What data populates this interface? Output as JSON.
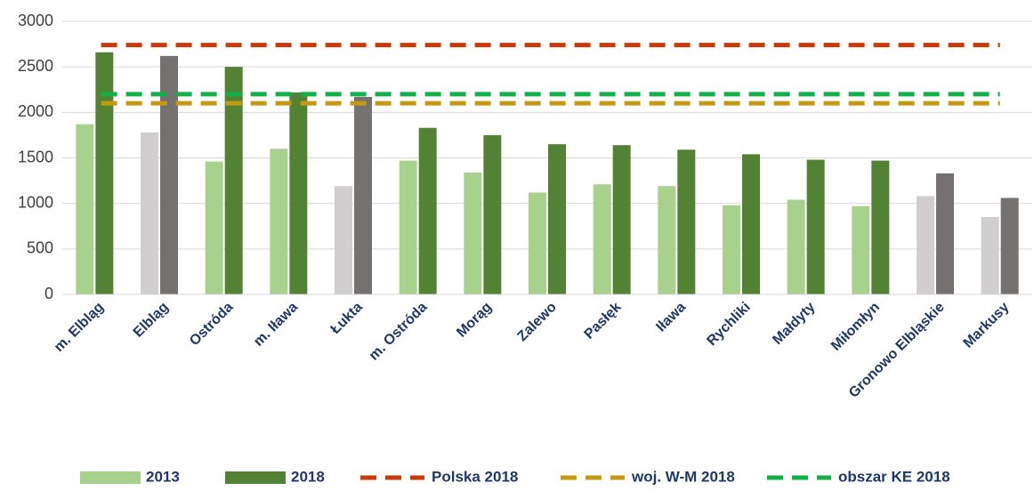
{
  "chart_data": {
    "type": "bar",
    "categories": [
      "m. Elbląg",
      "Elbląg",
      "Ostróda",
      "m. Iława",
      "Łukta",
      "m. Ostróda",
      "Morąg",
      "Zalewo",
      "Pasłęk",
      "Iława",
      "Rychliki",
      "Małdyty",
      "Miłomłyn",
      "Gronowo Elbląskie",
      "Markusy"
    ],
    "series": [
      {
        "name": "2013",
        "color": "#a9d18e",
        "colors": [
          "#a9d18e",
          "#d0cece",
          "#a9d18e",
          "#a9d18e",
          "#d0cece",
          "#a9d18e",
          "#a9d18e",
          "#a9d18e",
          "#a9d18e",
          "#a9d18e",
          "#a9d18e",
          "#a9d18e",
          "#a9d18e",
          "#d0cece",
          "#d0cece"
        ],
        "values": [
          1870,
          1780,
          1460,
          1600,
          1190,
          1470,
          1340,
          1120,
          1210,
          1190,
          980,
          1040,
          970,
          1080,
          850
        ]
      },
      {
        "name": "2018",
        "color": "#548235",
        "colors": [
          "#548235",
          "#767171",
          "#548235",
          "#548235",
          "#767171",
          "#548235",
          "#548235",
          "#548235",
          "#548235",
          "#548235",
          "#548235",
          "#548235",
          "#548235",
          "#767171",
          "#767171"
        ],
        "values": [
          2660,
          2620,
          2500,
          2220,
          2170,
          1830,
          1750,
          1650,
          1640,
          1590,
          1540,
          1480,
          1470,
          1330,
          1060
        ]
      }
    ],
    "reference_lines": [
      {
        "name": "Polska 2018",
        "color": "#c93a0a",
        "value": 2740
      },
      {
        "name": "woj. W-M 2018",
        "color": "#c49a12",
        "value": 2100
      },
      {
        "name": "obszar KE 2018",
        "color": "#12b04a",
        "value": 2200
      }
    ],
    "ylim": [
      0,
      3000
    ],
    "yticks": [
      0,
      500,
      1000,
      1500,
      2000,
      2500,
      3000
    ],
    "grid": true
  }
}
